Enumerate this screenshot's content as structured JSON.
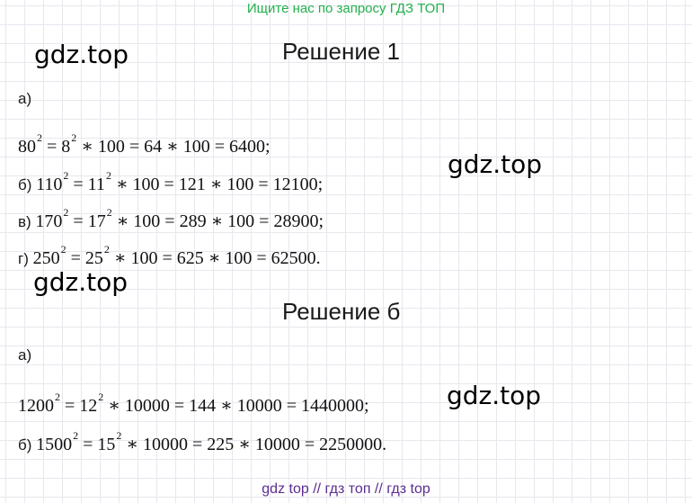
{
  "banner": "Ищите нас по запросу ГДЗ ТОП",
  "watermark": "gdz.top",
  "sections": [
    {
      "title": "Решение 1",
      "item_a_label": "а)",
      "lines": [
        {
          "label": "",
          "base": "80",
          "exp": "2",
          "mid_base": "8",
          "mid_exp": "2",
          "rest": " ∗ 100 = 64 ∗ 100 = 6400;"
        },
        {
          "label": "б) ",
          "base": "110",
          "exp": "2",
          "mid_base": "11",
          "mid_exp": "2",
          "rest": " ∗ 100 = 121 ∗ 100 = 12100;"
        },
        {
          "label": "в) ",
          "base": "170",
          "exp": "2",
          "mid_base": "17",
          "mid_exp": "2",
          "rest": " ∗ 100 = 289 ∗ 100 = 28900;"
        },
        {
          "label": "г) ",
          "base": "250",
          "exp": "2",
          "mid_base": "25",
          "mid_exp": "2",
          "rest": " ∗ 100 = 625 ∗ 100 = 62500."
        }
      ]
    },
    {
      "title": "Решение б",
      "item_a_label": "а)",
      "lines": [
        {
          "label": "",
          "base": "1200",
          "exp": "2",
          "mid_base": "12",
          "mid_exp": "2",
          "rest": " ∗ 10000 = 144 ∗ 10000 = 1440000;"
        },
        {
          "label": "б) ",
          "base": "1500",
          "exp": "2",
          "mid_base": "15",
          "mid_exp": "2",
          "rest": " ∗ 10000 = 225 ∗ 10000 = 2250000."
        }
      ]
    }
  ],
  "footer": "gdz top  //  гдз топ  //  гдз top"
}
